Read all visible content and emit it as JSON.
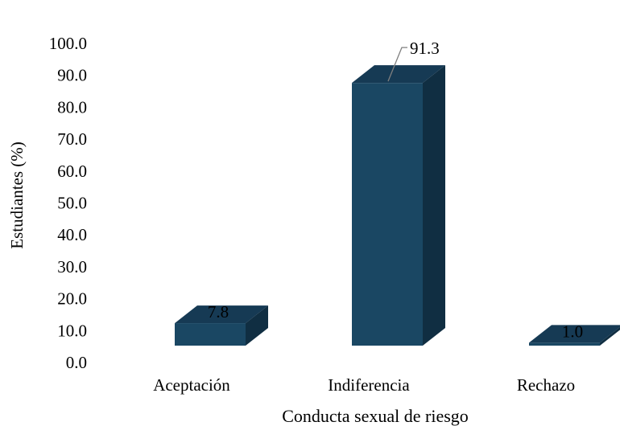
{
  "chart_data": {
    "type": "bar",
    "style": "3d-column",
    "categories": [
      "Aceptación",
      "Indiferencia",
      "Rechazo"
    ],
    "values": [
      7.8,
      91.3,
      1.0
    ],
    "data_labels": [
      "7.8",
      "91.3",
      "1.0"
    ],
    "title": "",
    "xlabel": "Conducta sexual de riesgo",
    "ylabel": "Estudiantes (%)",
    "ylim": [
      0,
      100
    ],
    "yticks": [
      "0.0",
      "10.0",
      "20.0",
      "30.0",
      "40.0",
      "50.0",
      "60.0",
      "70.0",
      "80.0",
      "90.0",
      "100.0"
    ],
    "grid": false,
    "legend": "none",
    "colors": {
      "front": "#1a4763",
      "top": "#163a54",
      "side": "#102e42",
      "leader_line": "#7f7f7f"
    }
  }
}
